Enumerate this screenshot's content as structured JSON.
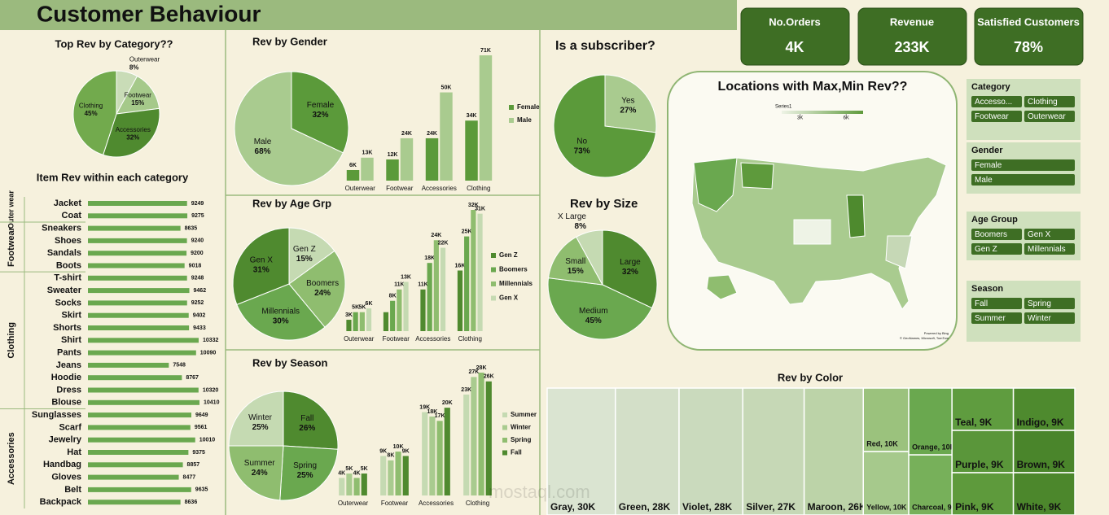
{
  "header": {
    "title": "Customer Behaviour"
  },
  "kpis": [
    {
      "label": "No.Orders",
      "value": "4K"
    },
    {
      "label": "Revenue",
      "value": "233K"
    },
    {
      "label": "Satisfied Customers",
      "value": "78%"
    }
  ],
  "slicers": [
    {
      "title": "Category",
      "items": [
        "Accesso...",
        "Clothing",
        "Footwear",
        "Outerwear"
      ]
    },
    {
      "title": "Gender",
      "items": [
        "Female",
        "Male"
      ]
    },
    {
      "title": "Age Group",
      "items": [
        "Boomers",
        "Gen X",
        "Gen Z",
        "Millennials"
      ]
    },
    {
      "title": "Season",
      "items": [
        "Fall",
        "Spring",
        "Summer",
        "Winter"
      ]
    }
  ],
  "watermark": "mostaql.com",
  "chart_data": [
    {
      "type": "pie",
      "title": "Top Rev by Category??",
      "labels": [
        "Outerwear",
        "Footwear",
        "Accessories",
        "Clothing"
      ],
      "values": [
        8,
        15,
        32,
        45
      ],
      "value_labels": [
        "8%",
        "15%",
        "32%",
        "45%"
      ],
      "colors": [
        "#c9dcb7",
        "#a5c98a",
        "#4f8a2f",
        "#72aa4d"
      ]
    },
    {
      "type": "grouped-hbar",
      "title": "Item Rev within each category",
      "color": "#6aa84f",
      "groups": [
        {
          "name": "Outer wear",
          "categories": [
            "Jacket",
            "Coat"
          ],
          "values": [
            9249,
            9275
          ]
        },
        {
          "name": "Footwear",
          "categories": [
            "Sneakers",
            "Shoes",
            "Sandals",
            "Boots"
          ],
          "values": [
            8635,
            9240,
            9200,
            9018
          ]
        },
        {
          "name": "Clothing",
          "categories": [
            "T-shirt",
            "Sweater",
            "Socks",
            "Skirt",
            "Shorts",
            "Shirt",
            "Pants",
            "Jeans",
            "Hoodie",
            "Dress",
            "Blouse"
          ],
          "values": [
            9248,
            9462,
            9252,
            9402,
            9433,
            10332,
            10090,
            7548,
            8767,
            10320,
            10410
          ]
        },
        {
          "name": "Accessories",
          "categories": [
            "Sunglasses",
            "Scarf",
            "Jewelry",
            "Hat",
            "Handbag",
            "Gloves",
            "Belt",
            "Backpack"
          ],
          "values": [
            9649,
            9561,
            10010,
            9375,
            8857,
            8477,
            9635,
            8636
          ]
        }
      ]
    },
    {
      "type": "pie",
      "title": "Rev by Gender",
      "labels": [
        "Female",
        "Male"
      ],
      "values": [
        32,
        68
      ],
      "value_labels": [
        "32%",
        "68%"
      ],
      "colors": [
        "#5b9a3a",
        "#a9cb8f"
      ]
    },
    {
      "type": "bar",
      "categories": [
        "Outerwear",
        "Footwear",
        "Accessories",
        "Clothing"
      ],
      "series": [
        {
          "name": "Female",
          "color": "#5b9a3a",
          "values": [
            6,
            12,
            24,
            34
          ],
          "value_labels": [
            "6K",
            "12K",
            "24K",
            "34K"
          ]
        },
        {
          "name": "Male",
          "color": "#a9cb8f",
          "values": [
            13,
            24,
            50,
            71
          ],
          "value_labels": [
            "13K",
            "24K",
            "50K",
            "71K"
          ]
        }
      ]
    },
    {
      "type": "pie",
      "title": "Rev by Age Grp",
      "labels": [
        "Gen Z",
        "Boomers",
        "Millennials",
        "Gen X"
      ],
      "values": [
        15,
        24,
        30,
        31
      ],
      "value_labels": [
        "15%",
        "24%",
        "30%",
        "31%"
      ],
      "colors": [
        "#c5dab2",
        "#8fbd6f",
        "#6aa84f",
        "#4f8a2f"
      ]
    },
    {
      "type": "bar",
      "categories": [
        "Outerwear",
        "Footwear",
        "Accessories",
        "Clothing"
      ],
      "series": [
        {
          "name": "Gen Z",
          "color": "#4f8a2f",
          "values": [
            3,
            5,
            11,
            16
          ],
          "value_labels": [
            "3K",
            null,
            "11K",
            "16K"
          ]
        },
        {
          "name": "Boomers",
          "color": "#6aa84f",
          "values": [
            5,
            8,
            18,
            25
          ],
          "value_labels": [
            "5K",
            "8K",
            "18K",
            "25K"
          ]
        },
        {
          "name": "Millennials",
          "color": "#8fbd6f",
          "values": [
            5,
            11,
            24,
            32
          ],
          "value_labels": [
            "5K",
            "11K",
            "24K",
            "32K"
          ]
        },
        {
          "name": "Gen X",
          "color": "#c5dab2",
          "values": [
            6,
            13,
            22,
            31
          ],
          "value_labels": [
            "6K",
            "13K",
            "22K",
            "31K"
          ]
        }
      ]
    },
    {
      "type": "pie",
      "title": "Rev by Season",
      "labels": [
        "Fall",
        "Spring",
        "Summer",
        "Winter"
      ],
      "values": [
        26,
        25,
        24,
        25
      ],
      "value_labels": [
        "26%",
        "25%",
        "24%",
        "25%"
      ],
      "colors": [
        "#4f8a2f",
        "#6aa84f",
        "#8fbd6f",
        "#c5dab2"
      ]
    },
    {
      "type": "bar",
      "categories": [
        "Outerwear",
        "Footwear",
        "Accessories",
        "Clothing"
      ],
      "series": [
        {
          "name": "Summer",
          "color": "#c5dab2",
          "values": [
            4,
            9,
            19,
            23
          ],
          "value_labels": [
            "4K",
            "9K",
            "19K",
            "23K"
          ]
        },
        {
          "name": "Winter",
          "color": "#a9cb8f",
          "values": [
            5,
            8,
            18,
            27
          ],
          "value_labels": [
            "5K",
            "8K",
            "18K",
            "27K"
          ]
        },
        {
          "name": "Spring",
          "color": "#8fbd6f",
          "values": [
            4,
            10,
            17,
            28
          ],
          "value_labels": [
            "4K",
            "10K",
            "17K",
            "28K"
          ]
        },
        {
          "name": "Fall",
          "color": "#4f8a2f",
          "values": [
            5,
            9,
            20,
            26
          ],
          "value_labels": [
            "5K",
            "9K",
            "20K",
            "26K"
          ]
        }
      ]
    },
    {
      "type": "pie",
      "title": "Is a subscriber?",
      "labels": [
        "Yes",
        "No"
      ],
      "values": [
        27,
        73
      ],
      "value_labels": [
        "27%",
        "73%"
      ],
      "colors": [
        "#a9cb8f",
        "#5b9a3a"
      ]
    },
    {
      "type": "pie",
      "title": "Rev by Size",
      "labels": [
        "Large",
        "Medium",
        "Small",
        "X Large"
      ],
      "values": [
        32,
        45,
        15,
        8
      ],
      "value_labels": [
        "32%",
        "45%",
        "15%",
        "8%"
      ],
      "colors": [
        "#4f8a2f",
        "#6aa84f",
        "#8fbd6f",
        "#c5dab2"
      ]
    },
    {
      "type": "map",
      "title": "Locations with Max,Min Rev??",
      "legend_title": "Series1",
      "clim": [
        1.8,
        7.1
      ],
      "colorbar": {
        "colors": [
          "#eef3e6",
          "#5e9a3c"
        ],
        "ticks": [
          {
            "value": 3,
            "label": "3K"
          },
          {
            "value": 6,
            "label": "6K"
          }
        ]
      },
      "credits": [
        "Powered by Bing",
        "© GeoNames, Microsoft, TomTom"
      ]
    },
    {
      "type": "treemap",
      "title": "Rev by Color",
      "labels": [
        "Gray",
        "Green",
        "Violet",
        "Silver",
        "Maroon",
        "Red",
        "Yellow",
        "Orange",
        "Charcoal",
        "Teal",
        "Purple",
        "Pink",
        "Indigo",
        "Brown",
        "White"
      ],
      "values": [
        30,
        28,
        28,
        27,
        26,
        10,
        10,
        10,
        9,
        9,
        9,
        9,
        9,
        9,
        9
      ],
      "value_labels": [
        "Gray, 30K",
        "Green, 28K",
        "Violet, 28K",
        "Silver, 27K",
        "Maroon, 26K",
        "Red, 10K",
        "Yellow, 10K",
        "Orange, 10K",
        "Charcoal, 9K",
        "Teal, 9K",
        "Purple, 9K",
        "Pink, 9K",
        "Indigo, 9K",
        "Brown, 9K",
        "White, 9K"
      ],
      "colors": [
        "#dae4d1",
        "#d3dfc8",
        "#cadabd",
        "#c6d8b6",
        "#bcd3a8",
        "#9bc27d",
        "#a6c98c",
        "#6aa84f",
        "#77b05a",
        "#5f9c3f",
        "#5a963a",
        "#5e9a3c",
        "#4e8a2e",
        "#4a852b",
        "#4c872c"
      ]
    }
  ]
}
